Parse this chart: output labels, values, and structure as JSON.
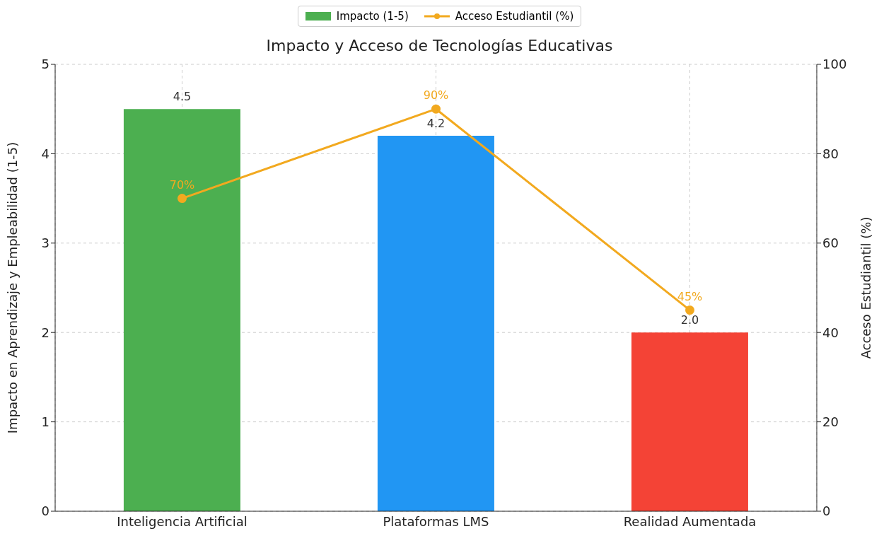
{
  "chart_data": {
    "type": "bar",
    "title": "Impacto y Acceso de Tecnologías Educativas",
    "ylabel": "Impacto en Aprendizaje y Empleabilidad (1-5)",
    "y2label": "Acceso Estudiantil (%)",
    "categories": [
      "Inteligencia Artificial",
      "Plataformas LMS",
      "Realidad Aumentada"
    ],
    "series": [
      {
        "name": "Impacto (1-5)",
        "colors": [
          "#4caf50",
          "#2196f3",
          "#f44336"
        ],
        "values": [
          4.5,
          4.2,
          2.0
        ],
        "value_labels": [
          "4.5",
          "4.2",
          "2.0"
        ]
      },
      {
        "name": "Acceso Estudiantil (%)",
        "type": "line",
        "axis": "y2",
        "color": "#f2a91f",
        "values": [
          70,
          90,
          45
        ],
        "value_labels": [
          "70%",
          "90%",
          "45%"
        ],
        "marker": "circle"
      }
    ],
    "ylim": [
      0,
      5
    ],
    "yticks": [
      0,
      1,
      2,
      3,
      4,
      5
    ],
    "y2lim": [
      0,
      100
    ],
    "y2ticks": [
      0,
      20,
      40,
      60,
      80,
      100
    ],
    "grid": true,
    "legend": "top"
  }
}
